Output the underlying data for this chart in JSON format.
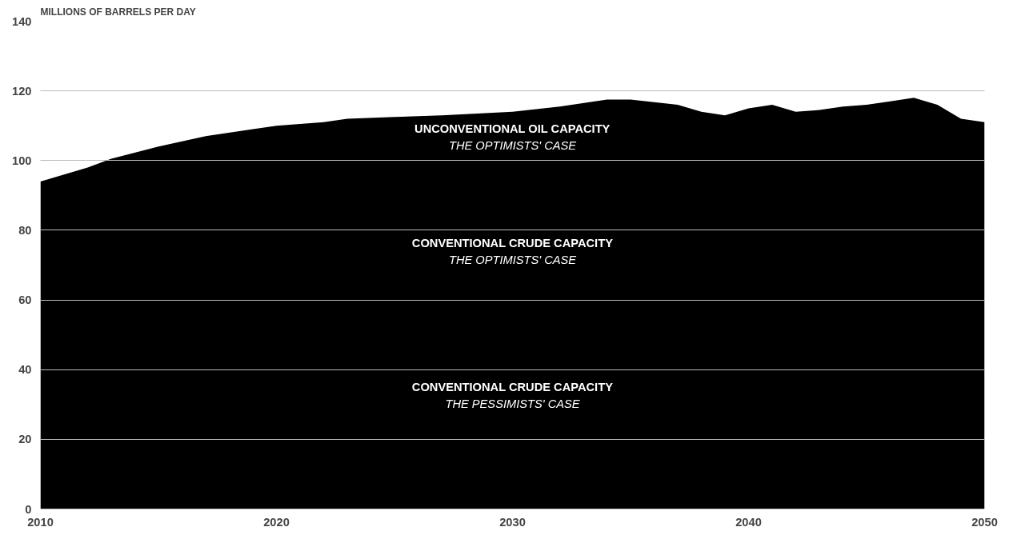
{
  "chart_data": {
    "type": "area",
    "ylabel": "MILLIONS OF BARRELS PER DAY",
    "x": [
      2010,
      2012,
      2013,
      2015,
      2017,
      2019,
      2020,
      2022,
      2023,
      2025,
      2027,
      2030,
      2032,
      2034,
      2035,
      2037,
      2038,
      2039,
      2040,
      2041,
      2042,
      2043,
      2044,
      2045,
      2046,
      2047,
      2048,
      2049,
      2050
    ],
    "series": [
      {
        "color": "#000000",
        "values": [
          94,
          98,
          100.5,
          104,
          107,
          109,
          110,
          111,
          112,
          112.5,
          113,
          114,
          115.5,
          117.5,
          117.5,
          116,
          114,
          113,
          115,
          116,
          114,
          114.5,
          115.5,
          116,
          117,
          118,
          116,
          112,
          111
        ]
      }
    ],
    "xlim": [
      2010,
      2050
    ],
    "xticks": [
      2010,
      2020,
      2030,
      2040,
      2050
    ],
    "ylim": [
      0,
      140
    ],
    "yticks": [
      0,
      20,
      40,
      60,
      80,
      100,
      120,
      140
    ],
    "grid": "y",
    "annotations": [
      "UNCONVENTIONAL OIL CAPACITY",
      "THE OPTIMISTS' CASE",
      "CONVENTIONAL CRUDE CAPACITY",
      "THE OPTIMISTS' CASE",
      "CONVENTIONAL CRUDE CAPACITY",
      "THE PESSIMISTS' CASE"
    ]
  }
}
